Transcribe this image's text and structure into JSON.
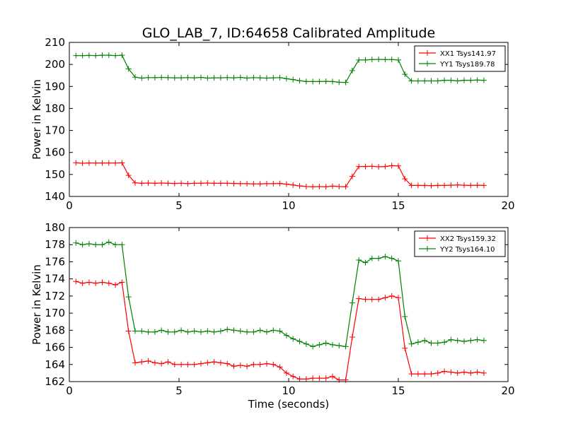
{
  "chart_data": [
    {
      "type": "line",
      "title": "GLO_LAB_7, ID:64658 Calibrated Amplitude",
      "xlabel": "",
      "ylabel": "Power in Kelvin",
      "xlim": [
        0,
        20
      ],
      "ylim": [
        140,
        210
      ],
      "xticks": [
        0,
        5,
        10,
        15,
        20
      ],
      "yticks": [
        140,
        150,
        160,
        170,
        180,
        190,
        200,
        210
      ],
      "grid": false,
      "legend_position": "top-right",
      "x": [
        0.3,
        0.6,
        0.9,
        1.2,
        1.5,
        1.8,
        2.1,
        2.4,
        2.7,
        3.0,
        3.3,
        3.6,
        3.9,
        4.2,
        4.5,
        4.8,
        5.1,
        5.4,
        5.7,
        6.0,
        6.3,
        6.6,
        6.9,
        7.2,
        7.5,
        7.8,
        8.1,
        8.4,
        8.7,
        9.0,
        9.3,
        9.6,
        9.9,
        10.2,
        10.5,
        10.8,
        11.1,
        11.4,
        11.7,
        12.0,
        12.3,
        12.6,
        12.9,
        13.2,
        13.5,
        13.8,
        14.1,
        14.4,
        14.7,
        15.0,
        15.3,
        15.6,
        15.9,
        16.2,
        16.5,
        16.8,
        17.1,
        17.4,
        17.7,
        18.0,
        18.3,
        18.6,
        18.9
      ],
      "series": [
        {
          "name": "XX1 Tsys141.97",
          "color": "#ff0000",
          "values": [
            155.3,
            155.1,
            155.2,
            155.2,
            155.2,
            155.2,
            155.2,
            155.3,
            149.6,
            146.2,
            146.0,
            146.1,
            146.0,
            146.1,
            146.0,
            145.9,
            146.0,
            145.8,
            146.0,
            146.0,
            146.1,
            146.0,
            146.0,
            146.0,
            145.9,
            145.8,
            145.8,
            145.7,
            145.7,
            145.8,
            145.8,
            145.9,
            145.6,
            145.2,
            144.8,
            144.5,
            144.4,
            144.5,
            144.4,
            144.7,
            144.5,
            144.4,
            149.1,
            153.6,
            153.6,
            153.7,
            153.5,
            153.6,
            154.0,
            153.9,
            148.0,
            145.0,
            145.0,
            145.0,
            144.9,
            145.0,
            145.0,
            145.1,
            145.2,
            145.1,
            145.0,
            145.1,
            145.0
          ]
        },
        {
          "name": "YY1 Tsys189.78",
          "color": "#008000",
          "values": [
            204.0,
            204.0,
            204.1,
            204.0,
            204.2,
            204.2,
            204.0,
            204.2,
            198.0,
            194.2,
            193.8,
            194.0,
            194.0,
            194.1,
            194.0,
            193.9,
            193.9,
            194.0,
            193.9,
            194.1,
            193.8,
            193.9,
            193.9,
            194.0,
            193.9,
            194.1,
            193.8,
            194.0,
            193.9,
            193.8,
            193.9,
            194.0,
            193.5,
            193.1,
            192.6,
            192.2,
            192.2,
            192.2,
            192.3,
            192.2,
            191.9,
            191.8,
            197.2,
            202.0,
            202.0,
            202.2,
            202.3,
            202.2,
            202.2,
            202.0,
            195.5,
            192.5,
            192.5,
            192.5,
            192.5,
            192.5,
            192.8,
            192.8,
            192.5,
            192.8,
            192.8,
            192.9,
            192.8
          ]
        }
      ]
    },
    {
      "type": "line",
      "title": "",
      "xlabel": "Time (seconds)",
      "ylabel": "Power in Kelvin",
      "xlim": [
        0,
        20
      ],
      "ylim": [
        162,
        180
      ],
      "xticks": [
        0,
        5,
        10,
        15,
        20
      ],
      "yticks": [
        162,
        164,
        166,
        168,
        170,
        172,
        174,
        176,
        178,
        180
      ],
      "grid": false,
      "legend_position": "top-right",
      "x": [
        0.3,
        0.6,
        0.9,
        1.2,
        1.5,
        1.8,
        2.1,
        2.4,
        2.7,
        3.0,
        3.3,
        3.6,
        3.9,
        4.2,
        4.5,
        4.8,
        5.1,
        5.4,
        5.7,
        6.0,
        6.3,
        6.6,
        6.9,
        7.2,
        7.5,
        7.8,
        8.1,
        8.4,
        8.7,
        9.0,
        9.3,
        9.6,
        9.9,
        10.2,
        10.5,
        10.8,
        11.1,
        11.4,
        11.7,
        12.0,
        12.3,
        12.6,
        12.9,
        13.2,
        13.5,
        13.8,
        14.1,
        14.4,
        14.7,
        15.0,
        15.3,
        15.6,
        15.9,
        16.2,
        16.5,
        16.8,
        17.1,
        17.4,
        17.7,
        18.0,
        18.3,
        18.6,
        18.9
      ],
      "series": [
        {
          "name": "XX2 Tsys159.32",
          "color": "#ff0000",
          "values": [
            173.7,
            173.5,
            173.6,
            173.5,
            173.6,
            173.5,
            173.3,
            173.6,
            167.9,
            164.2,
            164.3,
            164.4,
            164.2,
            164.1,
            164.3,
            164.0,
            164.0,
            164.0,
            164.0,
            164.1,
            164.2,
            164.3,
            164.2,
            164.1,
            163.8,
            163.9,
            163.8,
            164.0,
            164.0,
            164.1,
            164.0,
            163.7,
            163.0,
            162.6,
            162.3,
            162.3,
            162.4,
            162.4,
            162.4,
            162.6,
            162.2,
            162.2,
            167.2,
            171.7,
            171.6,
            171.6,
            171.6,
            171.8,
            172.0,
            171.8,
            165.9,
            162.9,
            162.9,
            162.9,
            162.9,
            163.0,
            163.2,
            163.1,
            163.0,
            163.1,
            163.0,
            163.1,
            163.0
          ]
        },
        {
          "name": "YY2 Tsys164.10",
          "color": "#008000",
          "values": [
            178.2,
            178.0,
            178.1,
            178.0,
            178.0,
            178.3,
            178.0,
            178.0,
            171.9,
            167.9,
            167.9,
            167.8,
            167.8,
            168.0,
            167.8,
            167.8,
            168.0,
            167.8,
            167.9,
            167.8,
            167.9,
            167.8,
            167.9,
            168.1,
            168.0,
            167.9,
            167.8,
            167.8,
            168.0,
            167.8,
            168.0,
            167.9,
            167.4,
            167.0,
            166.7,
            166.4,
            166.1,
            166.3,
            166.5,
            166.3,
            166.2,
            166.1,
            171.2,
            176.2,
            175.9,
            176.4,
            176.4,
            176.6,
            176.4,
            176.1,
            169.6,
            166.4,
            166.6,
            166.8,
            166.5,
            166.5,
            166.6,
            166.9,
            166.8,
            166.7,
            166.8,
            166.9,
            166.8
          ]
        }
      ]
    }
  ]
}
